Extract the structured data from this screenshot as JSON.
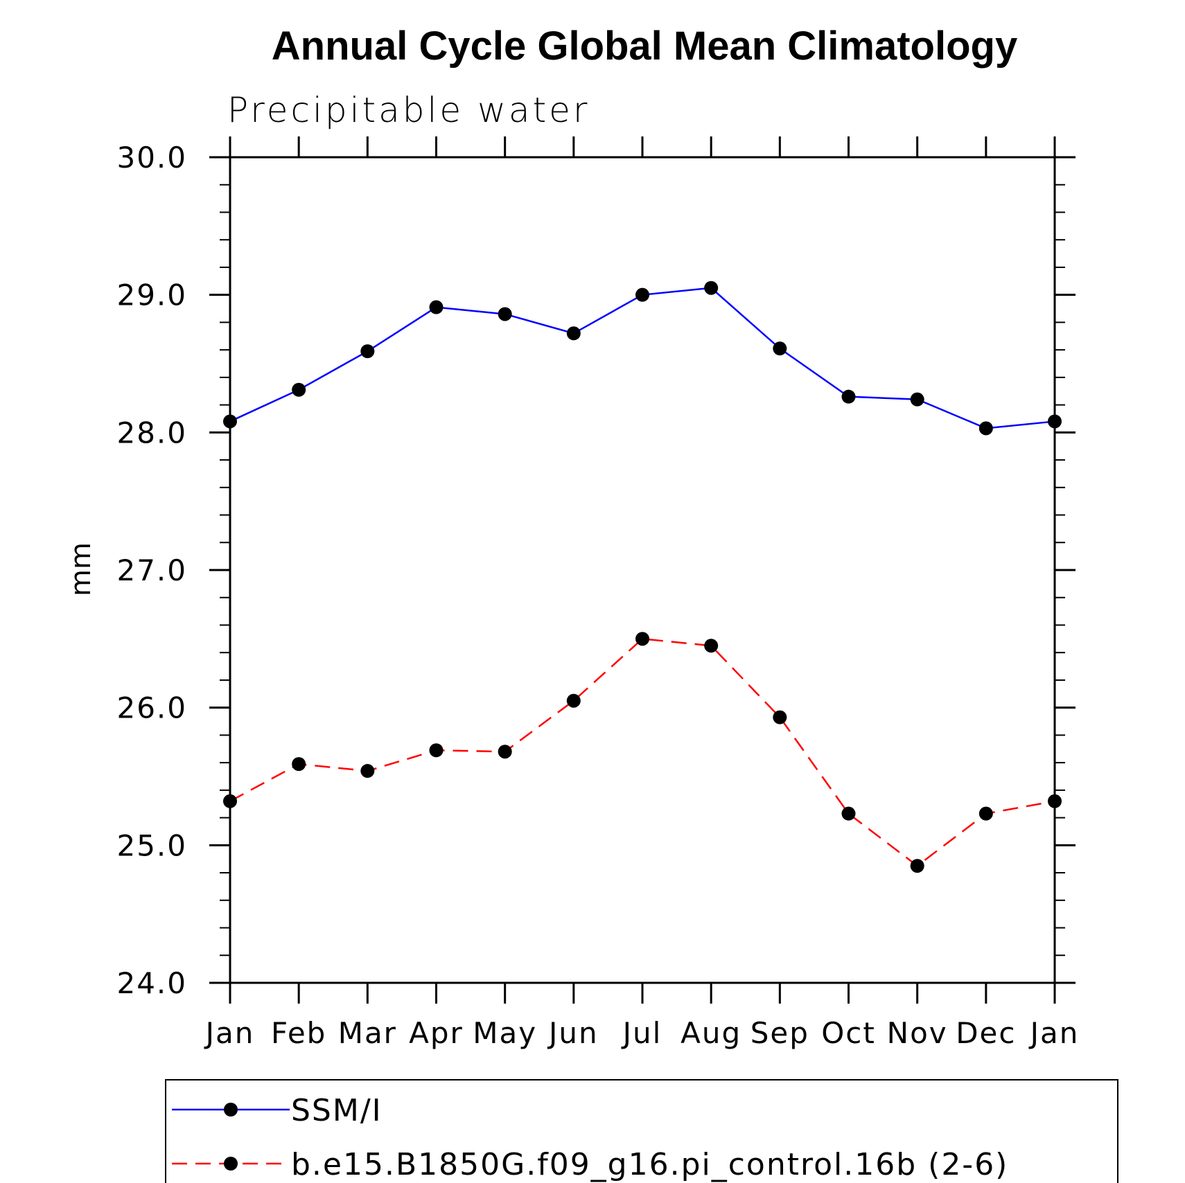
{
  "chart_data": {
    "type": "line",
    "title": "Annual Cycle Global Mean Climatology",
    "subtitle": "Precipitable water",
    "xlabel": "",
    "ylabel": "mm",
    "categories": [
      "Jan",
      "Feb",
      "Mar",
      "Apr",
      "May",
      "Jun",
      "Jul",
      "Aug",
      "Sep",
      "Oct",
      "Nov",
      "Dec",
      "Jan"
    ],
    "ylim": [
      24.0,
      30.0
    ],
    "yticks": [
      "24.0",
      "25.0",
      "26.0",
      "27.0",
      "28.0",
      "29.0",
      "30.0"
    ],
    "grid": false,
    "legend_position": "bottom",
    "series": [
      {
        "name": "SSM/I",
        "color": "#0000ff",
        "dash": "solid",
        "values": [
          28.08,
          28.31,
          28.59,
          28.91,
          28.86,
          28.72,
          29.0,
          29.05,
          28.61,
          28.26,
          28.24,
          28.03,
          28.08
        ]
      },
      {
        "name": "b.e15.B1850G.f09_g16.pi_control.16b (2-6)",
        "color": "#ff0000",
        "dash": "dashed",
        "values": [
          25.32,
          25.59,
          25.54,
          25.69,
          25.68,
          26.05,
          26.5,
          26.45,
          25.93,
          25.23,
          24.85,
          25.23,
          25.32
        ]
      }
    ]
  }
}
